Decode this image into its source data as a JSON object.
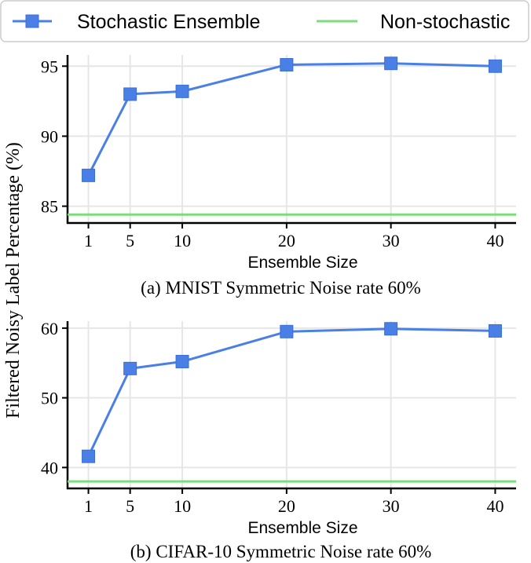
{
  "figure": {
    "ylabel": "Filtered Noisy Label Percentage (%)",
    "legend": {
      "placement": "top",
      "entries": [
        {
          "label": "Stochastic Ensemble",
          "color": "#4a7fe6",
          "marker": "square"
        },
        {
          "label": "Non-stochastic",
          "color": "#7ddc7d",
          "marker": "none"
        }
      ]
    }
  },
  "chart_data": [
    {
      "type": "line",
      "caption": "(a) MNIST Symmetric Noise rate 60%",
      "xlabel": "Ensemble Size",
      "x": [
        1,
        5,
        10,
        20,
        30,
        40
      ],
      "xticks": [
        1,
        5,
        10,
        20,
        30,
        40
      ],
      "xlim": [
        -1,
        42
      ],
      "yticks": [
        85,
        90,
        95
      ],
      "ylim": [
        83.8,
        95.8
      ],
      "grid": true,
      "series": [
        {
          "name": "Stochastic Ensemble",
          "values": [
            87.2,
            93.0,
            93.2,
            95.1,
            95.2,
            95.0
          ],
          "color": "#4a7fe6",
          "marker": "square"
        },
        {
          "name": "Non-stochastic",
          "values": [
            84.4,
            84.4,
            84.4,
            84.4,
            84.4,
            84.4
          ],
          "color": "#7ddc7d",
          "marker": "none"
        }
      ]
    },
    {
      "type": "line",
      "caption": "(b) CIFAR-10 Symmetric Noise rate 60%",
      "xlabel": "Ensemble Size",
      "x": [
        1,
        5,
        10,
        20,
        30,
        40
      ],
      "xticks": [
        1,
        5,
        10,
        20,
        30,
        40
      ],
      "xlim": [
        -1,
        42
      ],
      "yticks": [
        40,
        50,
        60
      ],
      "ylim": [
        37,
        61
      ],
      "grid": true,
      "series": [
        {
          "name": "Stochastic Ensemble",
          "values": [
            41.6,
            54.2,
            55.2,
            59.5,
            59.9,
            59.6
          ],
          "color": "#4a7fe6",
          "marker": "square"
        },
        {
          "name": "Non-stochastic",
          "values": [
            38.0,
            38.0,
            38.0,
            38.0,
            38.0,
            38.0
          ],
          "color": "#7ddc7d",
          "marker": "none"
        }
      ]
    }
  ]
}
